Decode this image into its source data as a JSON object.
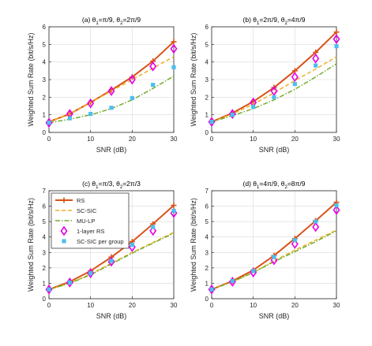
{
  "colors": {
    "rs": "#D95319",
    "scsic": "#EDB120",
    "mulp": "#77AC30",
    "onelayer": "#E600E6",
    "pergroup": "#4DBEEE",
    "axis": "#262626",
    "grid": "#D9D9D9"
  },
  "legend": {
    "rs": "RS",
    "scsic": "SC-SIC",
    "mulp": "MU-LP",
    "onelayer": "1-layer RS",
    "pergroup": "SC-SIC per group"
  },
  "chart_data": [
    {
      "type": "line",
      "title": "(a) θ1=π/9, θ2=2π/9",
      "title_parts": [
        "(a) θ",
        "1",
        "=π/9, θ",
        "2",
        "=2π/9"
      ],
      "xlabel": "SNR (dB)",
      "ylabel": "Weighted Sum Rate (bit/s/Hz)",
      "xlim": [
        0,
        30
      ],
      "ylim": [
        0,
        6
      ],
      "xticks": [
        "0",
        "10",
        "20",
        "30"
      ],
      "yticks": [
        "0",
        "1",
        "2",
        "3",
        "4",
        "5",
        "6"
      ],
      "grid": true,
      "x": [
        0,
        5,
        10,
        15,
        20,
        25,
        30
      ],
      "series": [
        {
          "name": "RS",
          "key": "rs",
          "values": [
            0.6,
            1.05,
            1.7,
            2.4,
            3.15,
            4.05,
            5.15
          ]
        },
        {
          "name": "SC-SIC",
          "key": "scsic",
          "values": [
            0.6,
            1.05,
            1.7,
            2.35,
            3.0,
            3.65,
            4.3
          ]
        },
        {
          "name": "MU-LP",
          "key": "mulp",
          "values": [
            0.55,
            0.75,
            1.0,
            1.35,
            1.85,
            2.5,
            3.2
          ]
        },
        {
          "name": "1-layer RS",
          "key": "onelayer",
          "values": [
            0.55,
            1.05,
            1.65,
            2.35,
            3.0,
            3.75,
            4.75
          ]
        },
        {
          "name": "SC-SIC per group",
          "key": "pergroup",
          "values": [
            0.55,
            0.8,
            1.05,
            1.4,
            1.95,
            2.7,
            3.7
          ]
        }
      ]
    },
    {
      "type": "line",
      "title": "(b) θ1=2π/9, θ2=4π/9",
      "title_parts": [
        "(b) θ",
        "1",
        "=2π/9, θ",
        "2",
        "=4π/9"
      ],
      "xlabel": "SNR (dB)",
      "ylabel": "Weighted Sum Rate (bit/s/Hz)",
      "xlim": [
        0,
        30
      ],
      "ylim": [
        0,
        6
      ],
      "xticks": [
        "0",
        "10",
        "20",
        "30"
      ],
      "yticks": [
        "0",
        "1",
        "2",
        "3",
        "4",
        "5",
        "6"
      ],
      "grid": true,
      "x": [
        0,
        5,
        10,
        15,
        20,
        25,
        30
      ],
      "series": [
        {
          "name": "RS",
          "key": "rs",
          "values": [
            0.6,
            1.1,
            1.75,
            2.55,
            3.5,
            4.55,
            5.7
          ]
        },
        {
          "name": "SC-SIC",
          "key": "scsic",
          "values": [
            0.6,
            1.05,
            1.6,
            2.25,
            2.95,
            3.6,
            4.3
          ]
        },
        {
          "name": "MU-LP",
          "key": "mulp",
          "values": [
            0.6,
            0.95,
            1.35,
            1.85,
            2.45,
            3.15,
            3.9
          ]
        },
        {
          "name": "1-layer RS",
          "key": "onelayer",
          "values": [
            0.6,
            1.05,
            1.7,
            2.35,
            3.15,
            4.2,
            5.3
          ]
        },
        {
          "name": "SC-SIC per group",
          "key": "pergroup",
          "values": [
            0.6,
            1.0,
            1.45,
            2.0,
            2.75,
            3.8,
            4.9
          ]
        }
      ]
    },
    {
      "type": "line",
      "title": "(c) θ1=π/3, θ2=2π/3",
      "title_parts": [
        "(c) θ",
        "1",
        "=π/3, θ",
        "2",
        "=2π/3"
      ],
      "xlabel": "SNR (dB)",
      "ylabel": "Weighted Sum Rate (bit/s/Hz)",
      "xlim": [
        0,
        30
      ],
      "ylim": [
        0,
        7
      ],
      "xticks": [
        "0",
        "10",
        "20",
        "30"
      ],
      "yticks": [
        "0",
        "1",
        "2",
        "3",
        "4",
        "5",
        "6",
        "7"
      ],
      "grid": true,
      "legend_position": "top-left",
      "x": [
        0,
        5,
        10,
        15,
        20,
        25,
        30
      ],
      "series": [
        {
          "name": "RS",
          "key": "rs",
          "values": [
            0.6,
            1.1,
            1.8,
            2.7,
            3.7,
            4.85,
            6.05
          ]
        },
        {
          "name": "SC-SIC",
          "key": "scsic",
          "values": [
            0.6,
            1.0,
            1.6,
            2.3,
            3.0,
            3.65,
            4.3
          ]
        },
        {
          "name": "MU-LP",
          "key": "mulp",
          "values": [
            0.6,
            1.0,
            1.55,
            2.25,
            2.95,
            3.6,
            4.25
          ]
        },
        {
          "name": "1-layer RS",
          "key": "onelayer",
          "values": [
            0.6,
            1.05,
            1.65,
            2.4,
            3.35,
            4.4,
            5.55
          ]
        },
        {
          "name": "SC-SIC per group",
          "key": "pergroup",
          "values": [
            0.6,
            1.05,
            1.65,
            2.45,
            3.5,
            4.65,
            5.7
          ]
        }
      ]
    },
    {
      "type": "line",
      "title": "(d) θ1=4π/9, θ2=8π/9",
      "title_parts": [
        "(d) θ",
        "1",
        "=4π/9, θ",
        "2",
        "=8π/9"
      ],
      "xlabel": "SNR (dB)",
      "ylabel": "Weighted Sum Rate (bit/s/Hz)",
      "xlim": [
        0,
        30
      ],
      "ylim": [
        0,
        7
      ],
      "xticks": [
        "0",
        "10",
        "20",
        "30"
      ],
      "yticks": [
        "0",
        "1",
        "2",
        "3",
        "4",
        "5",
        "6",
        "7"
      ],
      "grid": true,
      "x": [
        0,
        5,
        10,
        15,
        20,
        25,
        30
      ],
      "series": [
        {
          "name": "RS",
          "key": "rs",
          "values": [
            0.6,
            1.15,
            1.85,
            2.8,
            3.9,
            5.05,
            6.25
          ]
        },
        {
          "name": "SC-SIC",
          "key": "scsic",
          "values": [
            0.6,
            1.1,
            1.7,
            2.45,
            3.15,
            3.8,
            4.45
          ]
        },
        {
          "name": "MU-LP",
          "key": "mulp",
          "values": [
            0.6,
            1.1,
            1.7,
            2.4,
            3.05,
            3.7,
            4.4
          ]
        },
        {
          "name": "1-layer RS",
          "key": "onelayer",
          "values": [
            0.6,
            1.1,
            1.7,
            2.5,
            3.55,
            4.65,
            5.75
          ]
        },
        {
          "name": "SC-SIC per group",
          "key": "pergroup",
          "values": [
            0.6,
            1.15,
            1.8,
            2.7,
            3.8,
            5.0,
            6.05
          ]
        }
      ]
    }
  ]
}
